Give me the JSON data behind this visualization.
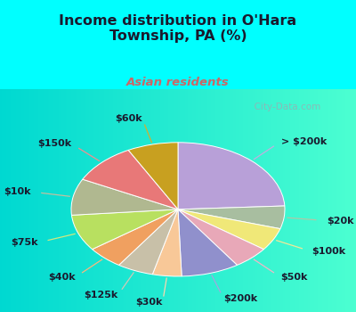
{
  "title": "Income distribution in O'Hara\nTownship, PA (%)",
  "subtitle": "Asian residents",
  "title_color": "#1a1a2e",
  "subtitle_color": "#cc6666",
  "background_top": "#00ffff",
  "background_chart_color": "#e8f5ee",
  "labels": [
    "> $200k",
    "$20k",
    "$100k",
    "$50k",
    "$200k",
    "$30k",
    "$125k",
    "$40k",
    "$75k",
    "$10k",
    "$150k",
    "$60k"
  ],
  "values": [
    22,
    5,
    5,
    5,
    8,
    4,
    5,
    5,
    8,
    8,
    9,
    7
  ],
  "colors": [
    "#b8a0d8",
    "#a8bea0",
    "#f0e878",
    "#e8a8b8",
    "#9090cc",
    "#f8c898",
    "#c8c0a8",
    "#f0a060",
    "#b8e060",
    "#b0b890",
    "#e87878",
    "#c8a020"
  ],
  "line_colors": [
    "#c0b0e0",
    "#b0c8a8",
    "#f0e898",
    "#f0b8c8",
    "#a0a8e0",
    "#f8d8b0",
    "#d0c8b8",
    "#f8b880",
    "#d0e880",
    "#c0c0a0",
    "#f09090",
    "#d0b030"
  ],
  "label_fontsize": 8.0,
  "startangle": 90,
  "watermark": "  City-Data.com"
}
